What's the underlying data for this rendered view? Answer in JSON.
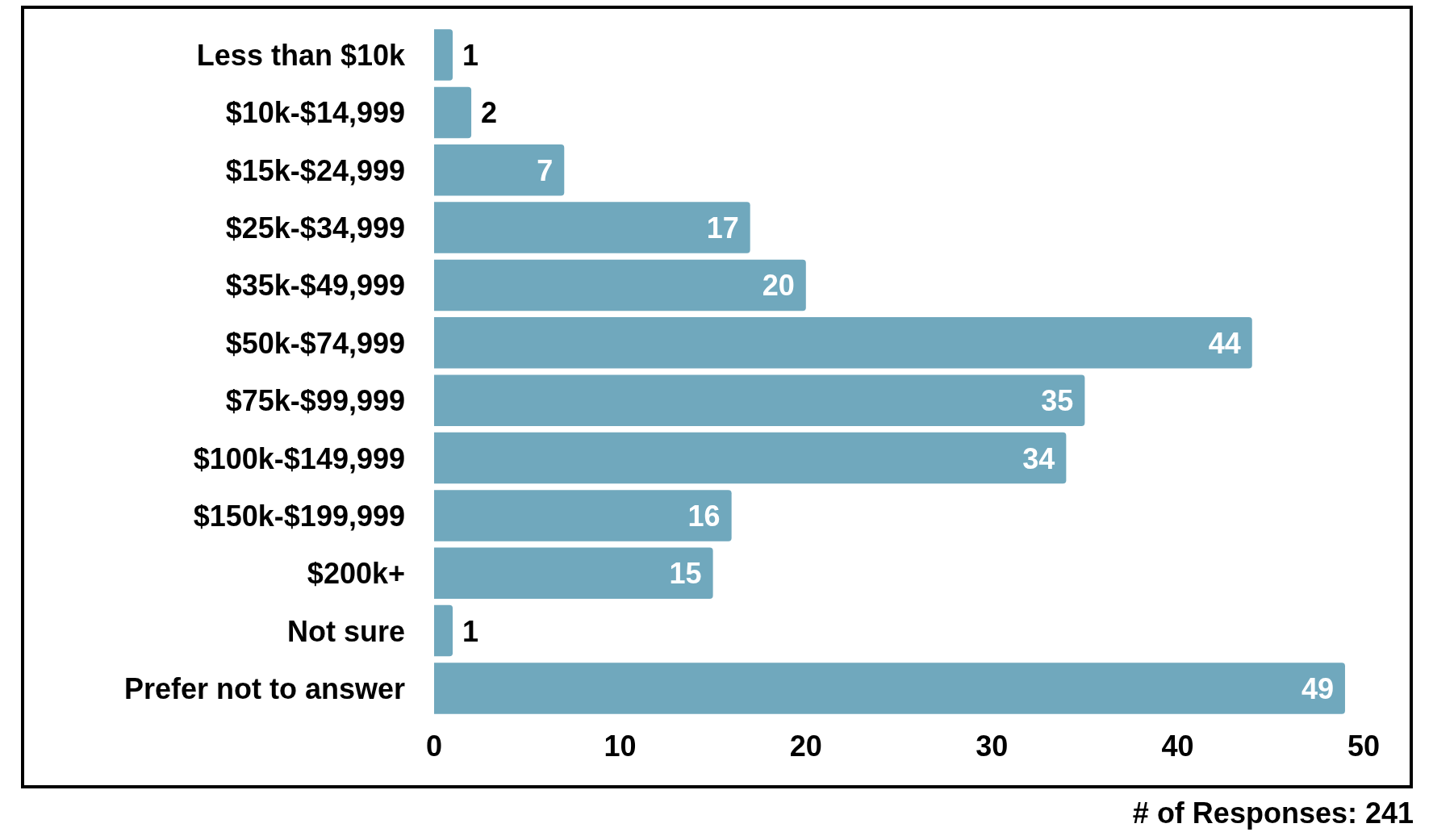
{
  "chart_data": {
    "type": "bar",
    "orientation": "horizontal",
    "categories": [
      "Less than $10k",
      "$10k-$14,999",
      "$15k-$24,999",
      "$25k-$34,999",
      "$35k-$49,999",
      "$50k-$74,999",
      "$75k-$99,999",
      "$100k-$149,999",
      "$150k-$199,999",
      "$200k+",
      "Not sure",
      "Prefer not to answer"
    ],
    "values": [
      1,
      2,
      7,
      17,
      20,
      44,
      35,
      34,
      16,
      15,
      1,
      49
    ],
    "color": "#70a8bd",
    "xlim": [
      0,
      50
    ],
    "xticks": [
      0,
      10,
      20,
      30,
      40,
      50
    ],
    "data_labels": true,
    "annotations": [
      "# of Responses: 241"
    ]
  }
}
